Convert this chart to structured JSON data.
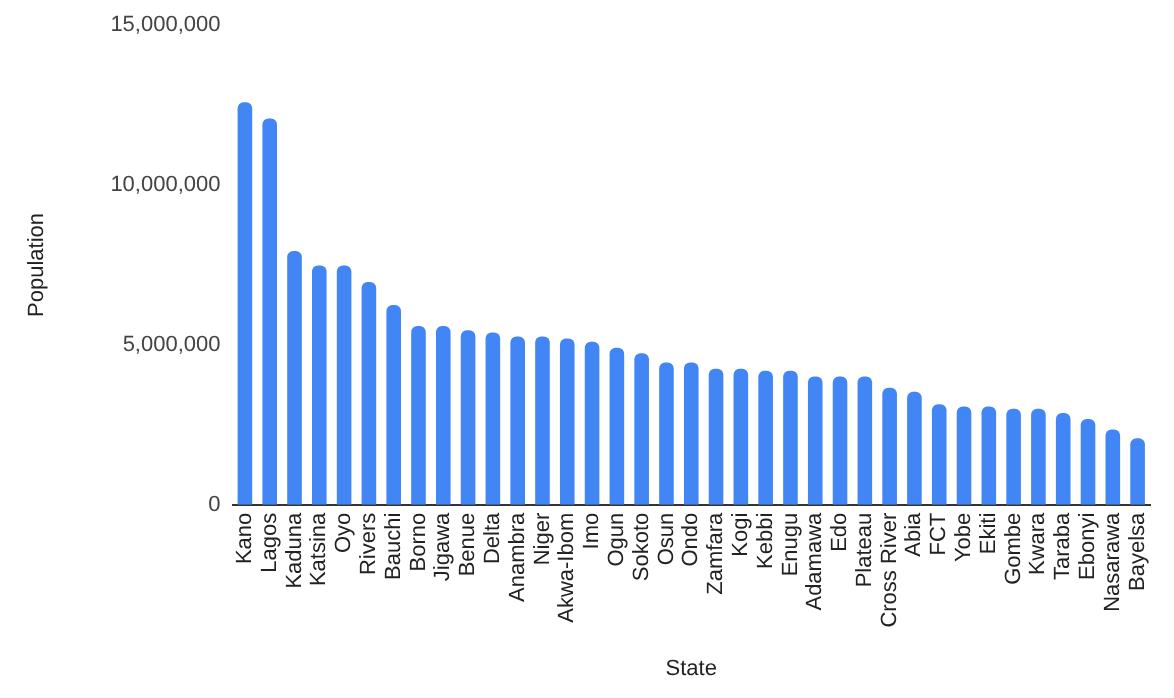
{
  "chart_data": {
    "type": "bar",
    "xlabel": "State",
    "ylabel": "Population",
    "categories": [
      "Kano",
      "Lagos",
      "Kaduna",
      "Katsina",
      "Oyo",
      "Rivers",
      "Bauchi",
      "Borno",
      "Jigawa",
      "Benue",
      "Delta",
      "Anambra",
      "Niger",
      "Akwa-Ibom",
      "Imo",
      "Ogun",
      "Sokoto",
      "Osun",
      "Ondo",
      "Zamfara",
      "Kogi",
      "Kebbi",
      "Enugu",
      "Adamawa",
      "Edo",
      "Plateau",
      "Cross River",
      "Abia",
      "FCT",
      "Yobe",
      "Ekiti",
      "Gombe",
      "Kwara",
      "Taraba",
      "Ebonyi",
      "Nasarawa",
      "Bayelsa"
    ],
    "values": [
      12590000,
      12080000,
      7940000,
      7480000,
      7480000,
      6970000,
      6250000,
      5590000,
      5590000,
      5460000,
      5390000,
      5260000,
      5260000,
      5200000,
      5100000,
      4910000,
      4740000,
      4450000,
      4450000,
      4250000,
      4250000,
      4190000,
      4190000,
      4010000,
      4010000,
      4010000,
      3660000,
      3530000,
      3140000,
      3070000,
      3070000,
      3000000,
      3000000,
      2870000,
      2680000,
      2350000,
      2080000
    ],
    "color": "#4285f4",
    "ylim": [
      0,
      15000000
    ],
    "yticks": [
      {
        "value": 0,
        "label": "0"
      },
      {
        "value": 5000000,
        "label": "5,000,000"
      },
      {
        "value": 10000000,
        "label": "10,000,000"
      },
      {
        "value": 15000000,
        "label": "15,000,000"
      }
    ],
    "grid": false,
    "legend": false
  }
}
